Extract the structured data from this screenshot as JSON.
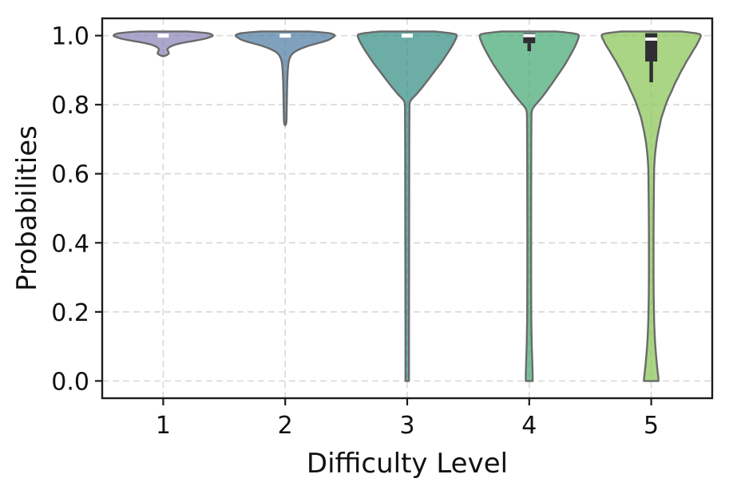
{
  "figure": {
    "background": "#ffffff",
    "plot_border_color": "#1c1c1c",
    "grid_color": "#d8d8d8"
  },
  "chart_data": {
    "type": "violin",
    "title": "",
    "xlabel": "Difficulty Level",
    "ylabel": "Probabilities",
    "categories": [
      "1",
      "2",
      "3",
      "4",
      "5"
    ],
    "ylim": [
      -0.05,
      1.05
    ],
    "ytick_labels": [
      "0.0",
      "0.2",
      "0.4",
      "0.6",
      "0.8",
      "1.0"
    ],
    "ytick_values": [
      0.0,
      0.2,
      0.4,
      0.6,
      0.8,
      1.0
    ],
    "grid": {
      "style": "dashed",
      "horizontal": true,
      "vertical": true
    },
    "legend": "none",
    "style": {
      "edge_color": "#6a6a6a",
      "fill_opacity": 0.75,
      "box_color": "#2e2e33",
      "median_color": "#ffffff",
      "violin_max_halfwidth_frac": 0.41
    },
    "violins": [
      {
        "category": "1",
        "fill": "#8f88bb",
        "stats": {
          "median": 1.0,
          "min": 0.94,
          "max": 1.0
        },
        "median_marker": 1.0,
        "box": null,
        "profile": [
          [
            1.012,
            0.5
          ],
          [
            1.007,
            0.88
          ],
          [
            1.001,
            0.99
          ],
          [
            0.996,
            0.94
          ],
          [
            0.99,
            0.8
          ],
          [
            0.984,
            0.58
          ],
          [
            0.978,
            0.35
          ],
          [
            0.972,
            0.2
          ],
          [
            0.966,
            0.12
          ],
          [
            0.96,
            0.085
          ],
          [
            0.954,
            0.1
          ],
          [
            0.948,
            0.11
          ],
          [
            0.943,
            0.06
          ],
          [
            0.94,
            0.0
          ]
        ]
      },
      {
        "category": "2",
        "fill": "#5482a7",
        "stats": {
          "median": 1.0,
          "min": 0.74,
          "max": 1.0
        },
        "median_marker": 1.0,
        "box": null,
        "profile": [
          [
            1.012,
            0.5
          ],
          [
            1.007,
            0.88
          ],
          [
            1.001,
            0.99
          ],
          [
            0.995,
            0.955
          ],
          [
            0.988,
            0.875
          ],
          [
            0.981,
            0.73
          ],
          [
            0.974,
            0.55
          ],
          [
            0.967,
            0.4
          ],
          [
            0.96,
            0.28
          ],
          [
            0.953,
            0.19
          ],
          [
            0.946,
            0.135
          ],
          [
            0.938,
            0.1
          ],
          [
            0.928,
            0.075
          ],
          [
            0.915,
            0.06
          ],
          [
            0.895,
            0.05
          ],
          [
            0.87,
            0.042
          ],
          [
            0.84,
            0.037
          ],
          [
            0.81,
            0.033
          ],
          [
            0.785,
            0.03
          ],
          [
            0.762,
            0.027
          ],
          [
            0.747,
            0.02
          ],
          [
            0.74,
            0.0
          ]
        ]
      },
      {
        "category": "3",
        "fill": "#3b9288",
        "stats": {
          "median": 1.0,
          "min": 0.0,
          "max": 1.0
        },
        "median_marker": 1.0,
        "box": null,
        "profile": [
          [
            1.012,
            0.55
          ],
          [
            1.006,
            0.9
          ],
          [
            1.0,
            0.99
          ],
          [
            0.98,
            0.935
          ],
          [
            0.96,
            0.855
          ],
          [
            0.94,
            0.765
          ],
          [
            0.92,
            0.67
          ],
          [
            0.9,
            0.565
          ],
          [
            0.88,
            0.46
          ],
          [
            0.865,
            0.38
          ],
          [
            0.85,
            0.3
          ],
          [
            0.838,
            0.23
          ],
          [
            0.828,
            0.17
          ],
          [
            0.819,
            0.11
          ],
          [
            0.811,
            0.065
          ],
          [
            0.804,
            0.05
          ],
          [
            0.79,
            0.045
          ],
          [
            0.7,
            0.042
          ],
          [
            0.55,
            0.04
          ],
          [
            0.4,
            0.038
          ],
          [
            0.25,
            0.036
          ],
          [
            0.1,
            0.035
          ],
          [
            0.0,
            0.035
          ]
        ]
      },
      {
        "category": "4",
        "fill": "#4cac78",
        "stats": {
          "median": 1.0,
          "q1": 0.978,
          "q3": 1.0,
          "whisker_low": 0.955,
          "min": 0.0,
          "max": 1.0
        },
        "median_marker": null,
        "box": {
          "q1": 0.978,
          "q3": 1.0,
          "median": 1.0,
          "whisker_low": 0.955,
          "whisker_high": 1.0
        },
        "profile": [
          [
            1.012,
            0.55
          ],
          [
            1.006,
            0.9
          ],
          [
            1.0,
            0.99
          ],
          [
            0.98,
            0.95
          ],
          [
            0.96,
            0.885
          ],
          [
            0.94,
            0.81
          ],
          [
            0.92,
            0.73
          ],
          [
            0.9,
            0.64
          ],
          [
            0.88,
            0.545
          ],
          [
            0.86,
            0.45
          ],
          [
            0.845,
            0.375
          ],
          [
            0.83,
            0.3
          ],
          [
            0.817,
            0.23
          ],
          [
            0.806,
            0.165
          ],
          [
            0.796,
            0.105
          ],
          [
            0.787,
            0.065
          ],
          [
            0.779,
            0.05
          ],
          [
            0.765,
            0.045
          ],
          [
            0.7,
            0.042
          ],
          [
            0.6,
            0.04
          ],
          [
            0.45,
            0.038
          ],
          [
            0.3,
            0.038
          ],
          [
            0.18,
            0.042
          ],
          [
            0.11,
            0.05
          ],
          [
            0.06,
            0.06
          ],
          [
            0.02,
            0.068
          ],
          [
            0.0,
            0.068
          ]
        ]
      },
      {
        "category": "5",
        "fill": "#8cc75b",
        "stats": {
          "median": 0.99,
          "q1": 0.925,
          "q3": 1.0,
          "whisker_low": 0.865,
          "min": 0.0,
          "max": 1.0
        },
        "median_marker": null,
        "box": {
          "q1": 0.925,
          "q3": 1.0,
          "median": 0.99,
          "whisker_low": 0.865,
          "whisker_high": 1.0
        },
        "profile": [
          [
            1.012,
            0.6
          ],
          [
            1.006,
            0.92
          ],
          [
            1.0,
            0.99
          ],
          [
            0.985,
            0.95
          ],
          [
            0.97,
            0.895
          ],
          [
            0.955,
            0.83
          ],
          [
            0.94,
            0.77
          ],
          [
            0.925,
            0.705
          ],
          [
            0.91,
            0.65
          ],
          [
            0.895,
            0.59
          ],
          [
            0.88,
            0.54
          ],
          [
            0.86,
            0.47
          ],
          [
            0.84,
            0.41
          ],
          [
            0.82,
            0.345
          ],
          [
            0.8,
            0.29
          ],
          [
            0.78,
            0.245
          ],
          [
            0.76,
            0.2
          ],
          [
            0.74,
            0.17
          ],
          [
            0.72,
            0.14
          ],
          [
            0.7,
            0.115
          ],
          [
            0.68,
            0.095
          ],
          [
            0.66,
            0.08
          ],
          [
            0.64,
            0.068
          ],
          [
            0.61,
            0.058
          ],
          [
            0.55,
            0.052
          ],
          [
            0.47,
            0.048
          ],
          [
            0.39,
            0.046
          ],
          [
            0.31,
            0.047
          ],
          [
            0.24,
            0.05
          ],
          [
            0.18,
            0.058
          ],
          [
            0.13,
            0.07
          ],
          [
            0.09,
            0.088
          ],
          [
            0.055,
            0.108
          ],
          [
            0.03,
            0.126
          ],
          [
            0.012,
            0.14
          ],
          [
            0.0,
            0.146
          ]
        ]
      }
    ]
  }
}
